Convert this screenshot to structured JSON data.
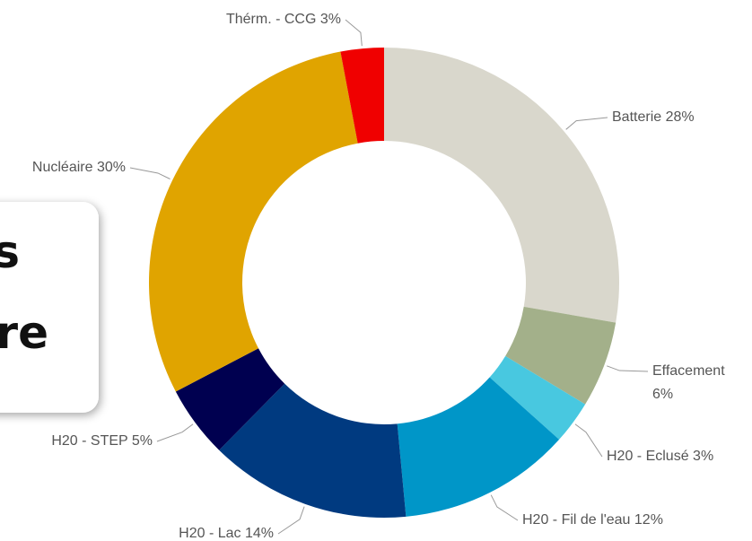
{
  "chart_data": {
    "type": "donut",
    "categories": [
      "Batterie",
      "Effacement",
      "H20 - Eclusé",
      "H20 - Fil de l'eau",
      "H20 - Lac",
      "H20 - STEP",
      "Nucléaire",
      "Thérm. - CCG"
    ],
    "values": [
      28,
      6,
      3,
      12,
      14,
      5,
      30,
      3
    ],
    "value_labels": [
      "28%",
      "6%",
      "3%",
      "12%",
      "14%",
      "5%",
      "30%",
      "3%"
    ],
    "colors": [
      "#d9d7cc",
      "#a3b08a",
      "#48c8e0",
      "#0096c8",
      "#003a80",
      "#000050",
      "#e0a400",
      "#f00000"
    ]
  },
  "card": {
    "lines": [
      "s",
      "re"
    ]
  }
}
